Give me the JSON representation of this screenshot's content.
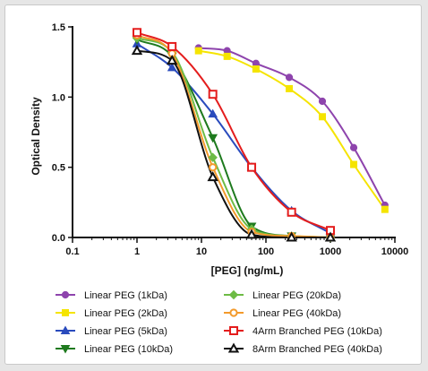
{
  "chart_data": {
    "type": "line",
    "title": "",
    "xlabel": "[PEG] (ng/mL)",
    "ylabel": "Optical Density",
    "x_scale": "log",
    "xlim": [
      0.1,
      10000
    ],
    "ylim": [
      0,
      1.5
    ],
    "x_ticks": [
      "0.1",
      "1",
      "10",
      "100",
      "1000",
      "10000"
    ],
    "y_ticks": [
      "0.0",
      "0.5",
      "1.0",
      "1.5"
    ],
    "grid": false,
    "legend_position": "bottom",
    "series": [
      {
        "name": "Linear PEG (1kDa)",
        "color": "#8e44ad",
        "marker": "circle",
        "x": [
          9,
          25,
          70,
          230,
          750,
          2300,
          7000
        ],
        "y": [
          1.35,
          1.33,
          1.24,
          1.14,
          0.97,
          0.64,
          0.23
        ]
      },
      {
        "name": "Linear PEG (2kDa)",
        "color": "#f5e400",
        "marker": "square",
        "x": [
          9,
          25,
          70,
          230,
          750,
          2300,
          7000
        ],
        "y": [
          1.33,
          1.29,
          1.2,
          1.06,
          0.86,
          0.52,
          0.2
        ]
      },
      {
        "name": "Linear PEG (5kDa)",
        "color": "#2a4bbd",
        "marker": "triangle-up",
        "x": [
          1,
          3.5,
          15,
          60,
          250,
          1000
        ],
        "y": [
          1.38,
          1.21,
          0.88,
          0.5,
          0.19,
          0.03
        ]
      },
      {
        "name": "Linear PEG (10kDa)",
        "color": "#1e7a1e",
        "marker": "triangle-down",
        "x": [
          1,
          3.5,
          15,
          60,
          250,
          1000
        ],
        "y": [
          1.41,
          1.29,
          0.71,
          0.08,
          0.01,
          0.0
        ]
      },
      {
        "name": "Linear PEG (20kDa)",
        "color": "#6dbb45",
        "marker": "diamond",
        "x": [
          1,
          3.5,
          15,
          60,
          250,
          1000
        ],
        "y": [
          1.42,
          1.32,
          0.57,
          0.06,
          0.01,
          0.0
        ]
      },
      {
        "name": "Linear PEG (40kDa)",
        "color": "#f39a2b",
        "marker": "circle-open",
        "x": [
          1,
          3.5,
          15,
          60,
          250,
          1000
        ],
        "y": [
          1.44,
          1.31,
          0.5,
          0.04,
          0.01,
          0.0
        ]
      },
      {
        "name": "4Arm Branched PEG (10kDa)",
        "color": "#e41d1d",
        "marker": "square-open",
        "x": [
          1,
          3.5,
          15,
          60,
          250,
          1000
        ],
        "y": [
          1.46,
          1.36,
          1.02,
          0.5,
          0.18,
          0.05
        ]
      },
      {
        "name": "8Arm Branched PEG (40kDa)",
        "color": "#111111",
        "marker": "triangle-open",
        "x": [
          1,
          3.5,
          15,
          60,
          250,
          1000
        ],
        "y": [
          1.33,
          1.26,
          0.43,
          0.02,
          0.0,
          0.0
        ]
      }
    ]
  }
}
